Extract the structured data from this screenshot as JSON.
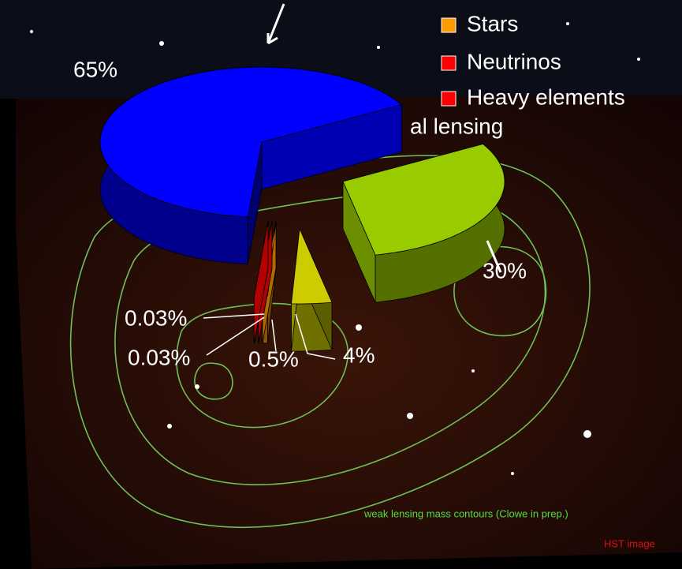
{
  "chart_data": {
    "type": "pie",
    "categories": [
      null,
      null,
      "Stars",
      "Neutrinos",
      "Heavy elements",
      null
    ],
    "values": [
      30,
      4,
      0.5,
      0.03,
      0.03,
      65
    ],
    "value_labels": [
      "30%",
      "4%",
      "0.5%",
      "0.03%",
      "0.03%",
      "65%"
    ],
    "colors": [
      "#99cc00",
      "#cccc00",
      "#ff9900",
      "#ff0000",
      "#ff0000",
      "#0000ff"
    ],
    "legend_entries": [
      2,
      3,
      4
    ],
    "annotations": [
      "al lensing",
      "weak lensing mass contours (Clowe in prep.)",
      "HST image"
    ]
  }
}
